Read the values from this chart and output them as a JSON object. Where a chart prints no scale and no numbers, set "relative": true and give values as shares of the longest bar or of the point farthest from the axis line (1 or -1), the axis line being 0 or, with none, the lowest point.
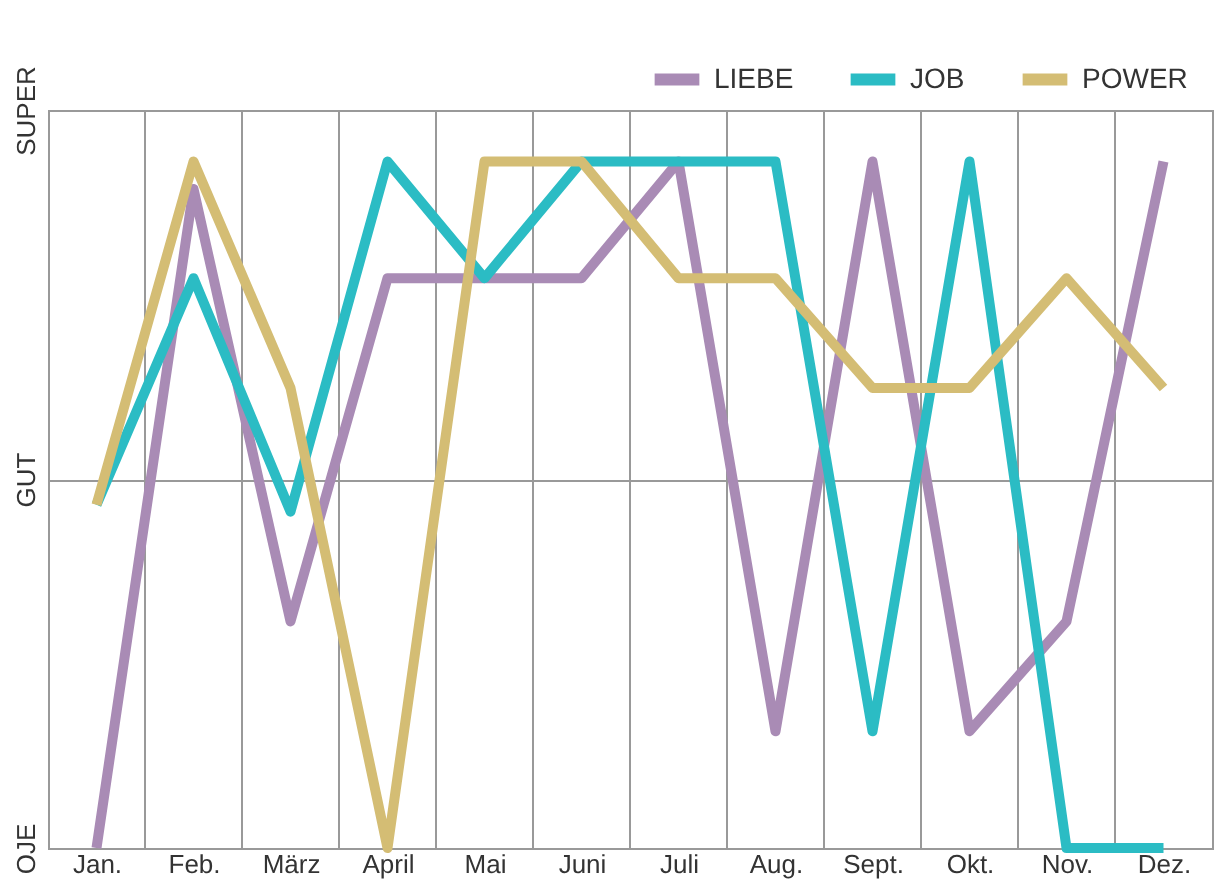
{
  "chart_data": {
    "type": "line",
    "relative": true,
    "categories": [
      "Jan.",
      "Feb.",
      "März",
      "April",
      "Mai",
      "Juni",
      "Juli",
      "Aug.",
      "Sept.",
      "Okt.",
      "Nov.",
      "Dez."
    ],
    "y_categories": [
      "SUPER",
      "GUT",
      "OJE"
    ],
    "series": [
      {
        "name": "LIEBE",
        "color": "#a98bb5",
        "values": [
          0,
          0.96,
          0.33,
          0.83,
          0.83,
          0.83,
          1,
          0.17,
          1,
          0.17,
          0.33,
          1
        ]
      },
      {
        "name": "JOB",
        "color": "#2bbcc4",
        "values": [
          0.5,
          0.83,
          0.49,
          1,
          0.83,
          1,
          1,
          1,
          0.17,
          1,
          0,
          0
        ]
      },
      {
        "name": "POWER",
        "color": "#d4bd74",
        "values": [
          0.5,
          1,
          0.67,
          0,
          1,
          1,
          0.83,
          0.83,
          0.67,
          0.67,
          0.83,
          0.67
        ]
      }
    ],
    "grid": true,
    "legend": "top right",
    "marker": "none",
    "line_style": "solid"
  }
}
